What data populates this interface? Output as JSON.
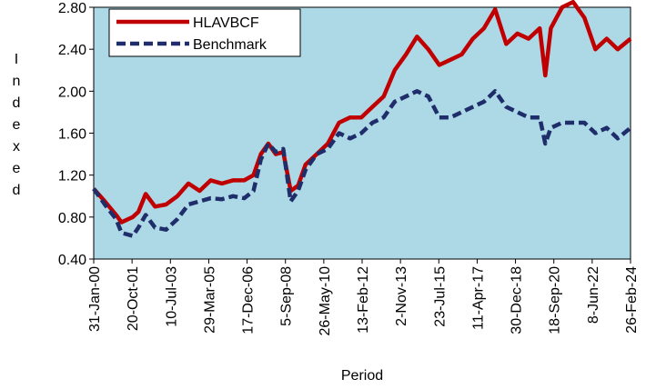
{
  "chart_data": {
    "type": "line",
    "xlabel": "Period",
    "ylabel": "Indexed",
    "x": [
      "2000-01-31",
      "2000-07-31",
      "2001-01-31",
      "2001-04-30",
      "2001-10-31",
      "2002-01-31",
      "2002-05-31",
      "2002-10-31",
      "2003-04-30",
      "2003-10-31",
      "2004-04-30",
      "2004-10-31",
      "2005-04-30",
      "2005-10-31",
      "2006-04-30",
      "2006-10-31",
      "2007-03-31",
      "2007-07-31",
      "2007-11-30",
      "2008-03-31",
      "2008-07-31",
      "2008-11-30",
      "2009-03-31",
      "2009-07-31",
      "2010-01-31",
      "2010-07-31",
      "2011-01-31",
      "2011-07-31",
      "2012-01-31",
      "2012-07-31",
      "2013-01-31",
      "2013-07-31",
      "2014-01-31",
      "2014-07-31",
      "2015-01-31",
      "2015-07-31",
      "2016-01-31",
      "2016-07-31",
      "2017-01-31",
      "2017-07-31",
      "2018-01-31",
      "2018-07-31",
      "2019-01-31",
      "2019-07-31",
      "2020-01-31",
      "2020-04-30",
      "2020-07-31",
      "2021-01-31",
      "2021-07-31",
      "2022-01-31",
      "2022-07-31",
      "2023-01-31",
      "2023-07-31",
      "2024-02-26"
    ],
    "series": [
      {
        "name": "HLAVBCF",
        "color": "#c00000",
        "dashed": false,
        "values": [
          1.07,
          0.95,
          0.82,
          0.75,
          0.8,
          0.85,
          1.02,
          0.9,
          0.92,
          1.0,
          1.12,
          1.05,
          1.15,
          1.12,
          1.15,
          1.15,
          1.2,
          1.4,
          1.5,
          1.4,
          1.42,
          1.05,
          1.1,
          1.3,
          1.4,
          1.5,
          1.7,
          1.75,
          1.75,
          1.85,
          1.95,
          2.2,
          2.35,
          2.52,
          2.4,
          2.25,
          2.3,
          2.35,
          2.5,
          2.6,
          2.78,
          2.45,
          2.55,
          2.5,
          2.6,
          2.15,
          2.6,
          2.8,
          2.85,
          2.7,
          2.4,
          2.5,
          2.4,
          2.5
        ]
      },
      {
        "name": "Benchmark",
        "color": "#1f2d6b",
        "dashed": true,
        "values": [
          1.07,
          0.92,
          0.78,
          0.65,
          0.62,
          0.7,
          0.82,
          0.7,
          0.68,
          0.78,
          0.92,
          0.95,
          0.98,
          0.97,
          1.0,
          0.98,
          1.05,
          1.35,
          1.5,
          1.42,
          1.45,
          0.95,
          1.05,
          1.25,
          1.4,
          1.45,
          1.6,
          1.55,
          1.6,
          1.7,
          1.75,
          1.9,
          1.95,
          2.0,
          1.95,
          1.75,
          1.75,
          1.8,
          1.85,
          1.9,
          2.0,
          1.85,
          1.8,
          1.75,
          1.75,
          1.5,
          1.65,
          1.7,
          1.7,
          1.7,
          1.6,
          1.65,
          1.55,
          1.65
        ]
      }
    ],
    "xlim": [
      "2000-01-31",
      "2024-02-26"
    ],
    "xticks": [
      {
        "value": "2000-01-31",
        "label": "31-Jan-00"
      },
      {
        "value": "2001-10-20",
        "label": "20-Oct-01"
      },
      {
        "value": "2003-07-10",
        "label": "10-Jul-03"
      },
      {
        "value": "2005-03-29",
        "label": "29-Mar-05"
      },
      {
        "value": "2006-12-17",
        "label": "17-Dec-06"
      },
      {
        "value": "2008-09-05",
        "label": "5-Sep-08"
      },
      {
        "value": "2010-05-26",
        "label": "26-May-10"
      },
      {
        "value": "2012-02-13",
        "label": "13-Feb-12"
      },
      {
        "value": "2013-11-02",
        "label": "2-Nov-13"
      },
      {
        "value": "2015-07-23",
        "label": "23-Jul-15"
      },
      {
        "value": "2017-04-11",
        "label": "11-Apr-17"
      },
      {
        "value": "2018-12-30",
        "label": "30-Dec-18"
      },
      {
        "value": "2020-09-18",
        "label": "18-Sep-20"
      },
      {
        "value": "2022-06-08",
        "label": "8-Jun-22"
      },
      {
        "value": "2024-02-26",
        "label": "26-Feb-24"
      }
    ],
    "ylim": [
      0.4,
      2.8
    ],
    "yticks": [
      {
        "value": 0.4,
        "label": "0.40"
      },
      {
        "value": 0.8,
        "label": "0.80"
      },
      {
        "value": 1.2,
        "label": "1.20"
      },
      {
        "value": 1.6,
        "label": "1.60"
      },
      {
        "value": 2.0,
        "label": "2.00"
      },
      {
        "value": 2.4,
        "label": "2.40"
      },
      {
        "value": 2.8,
        "label": "2.80"
      }
    ],
    "grid": false,
    "legend": "upper left",
    "background": "#add8e6"
  }
}
